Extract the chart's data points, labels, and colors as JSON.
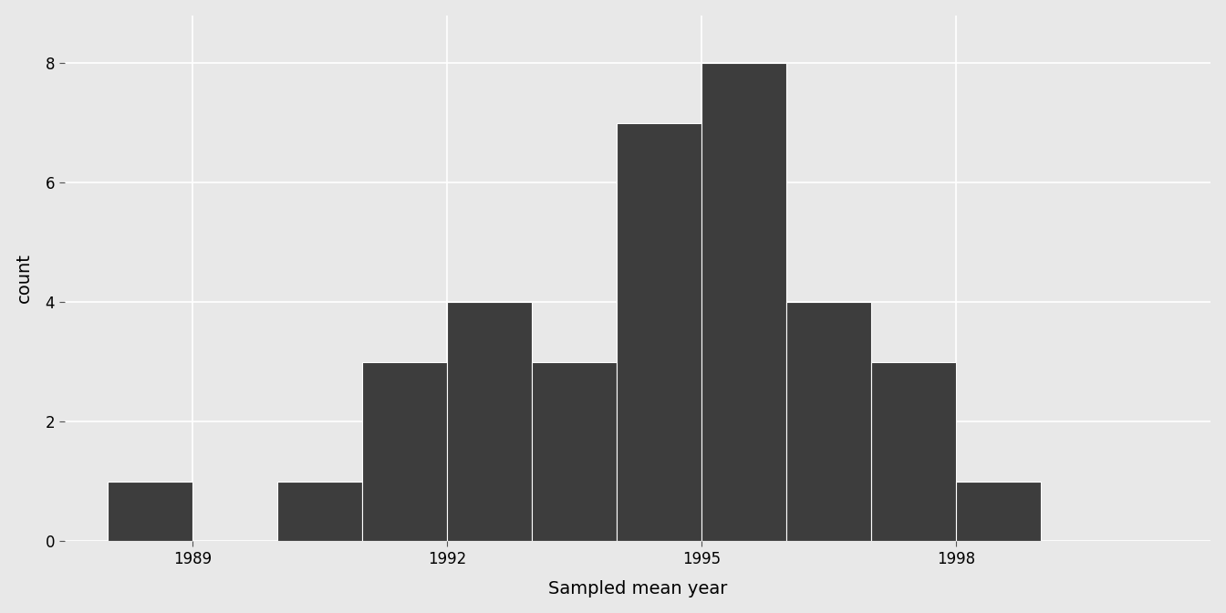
{
  "title": "",
  "xlabel": "Sampled mean year",
  "ylabel": "count",
  "bar_color": "#3d3d3d",
  "bar_edgecolor": "white",
  "background_color": "#e8e8e8",
  "panel_background": "#e8e8e8",
  "grid_color": "white",
  "bin_left_edges": [
    1988,
    1989,
    1990,
    1991,
    1992,
    1993,
    1994,
    1995,
    1996,
    1997,
    1998,
    1999
  ],
  "counts": [
    1,
    0,
    1,
    3,
    4,
    3,
    7,
    8,
    4,
    3,
    1,
    0
  ],
  "bar_width": 1.0,
  "xticks": [
    1989,
    1992,
    1995,
    1998
  ],
  "yticks": [
    0,
    2,
    4,
    6,
    8
  ],
  "ylim": [
    0,
    8.8
  ],
  "xlim": [
    1987.5,
    2001.0
  ]
}
